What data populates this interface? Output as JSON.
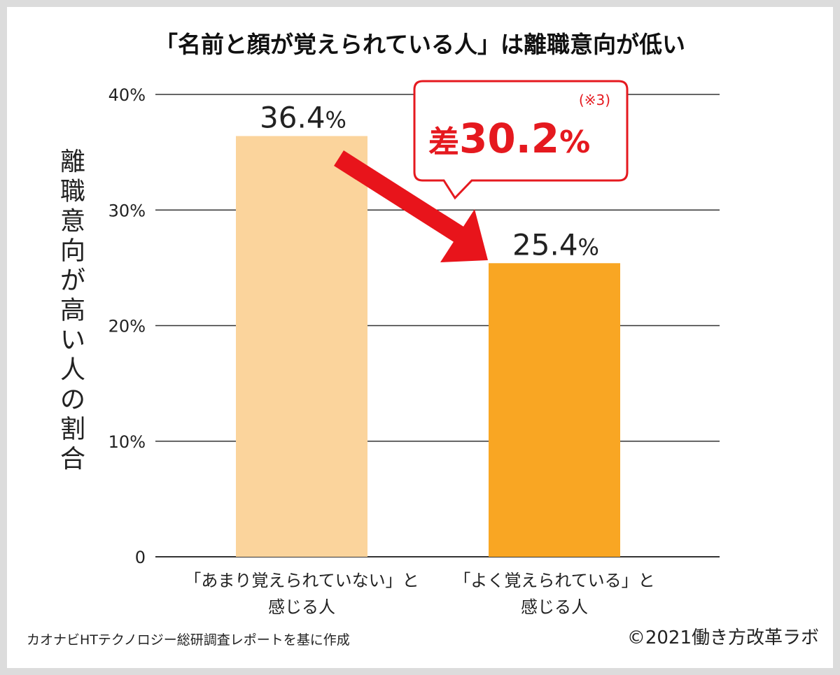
{
  "chart_data": {
    "type": "bar",
    "title": "「名前と顔が覚えられている人」は離職意向が低い",
    "ylabel": "離職意向が高い人の割合",
    "ylim": [
      0,
      40
    ],
    "yticks": [
      "0",
      "10%",
      "20%",
      "30%",
      "40%"
    ],
    "grid": true,
    "categories": [
      [
        "「あまり覚えられていない」と",
        "感じる人"
      ],
      [
        "「よく覚えられている」と",
        "感じる人"
      ]
    ],
    "values": [
      36.4,
      25.4
    ],
    "value_labels": [
      {
        "number": "36.4",
        "unit": "%"
      },
      {
        "number": "25.4",
        "unit": "%"
      }
    ],
    "colors": [
      "#fbd49c",
      "#f9a623"
    ],
    "annotation": {
      "prefix": "差",
      "number": "30.2",
      "unit": "%",
      "note": "(※3)",
      "color": "#e5191f"
    }
  },
  "footer": {
    "source": "カオナビHTテクノロジー総研調査レポートを基に作成",
    "copyright": "©2021働き方改革ラボ"
  }
}
